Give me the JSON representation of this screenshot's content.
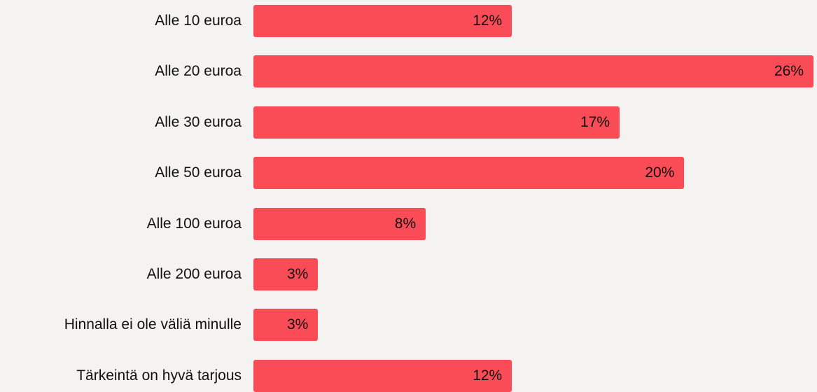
{
  "chart_data": {
    "type": "bar",
    "orientation": "horizontal",
    "categories": [
      "Alle 10 euroa",
      "Alle 20 euroa",
      "Alle 30 euroa",
      "Alle 50 euroa",
      "Alle 100 euroa",
      "Alle 200 euroa",
      "Hinnalla ei ole väliä minulle",
      "Tärkeintä on hyvä tarjous"
    ],
    "values": [
      12,
      26,
      17,
      20,
      8,
      3,
      3,
      12
    ],
    "value_labels": [
      "12%",
      "26%",
      "17%",
      "20%",
      "8%",
      "3%",
      "3%",
      "12%"
    ],
    "color": "#f94c56"
  }
}
